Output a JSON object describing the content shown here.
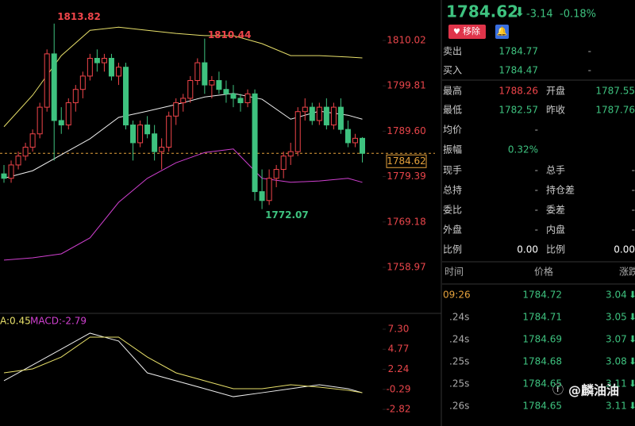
{
  "chart": {
    "type": "candlestick",
    "ylim": [
      1748.61,
      1819.12
    ],
    "yticks": [
      {
        "value": 1810.02,
        "label": "1810.02"
      },
      {
        "value": 1799.81,
        "label": "1799.81"
      },
      {
        "value": 1789.6,
        "label": "1789.60"
      },
      {
        "value": 1779.39,
        "label": "1779.39"
      },
      {
        "value": 1769.18,
        "label": "1769.18"
      },
      {
        "value": 1758.97,
        "label": "1758.97"
      }
    ],
    "last_price": 1784.62,
    "up_color": "#f0454a",
    "down_color": "#3ec27f",
    "candles": [
      [
        1780,
        1782,
        1778,
        1779
      ],
      [
        1779,
        1783,
        1778,
        1782
      ],
      [
        1782,
        1785,
        1781,
        1784
      ],
      [
        1784,
        1787,
        1783,
        1786
      ],
      [
        1786,
        1790,
        1785,
        1789
      ],
      [
        1789,
        1796,
        1788,
        1795
      ],
      [
        1795,
        1808,
        1794,
        1807
      ],
      [
        1807,
        1813.82,
        1783,
        1792
      ],
      [
        1792,
        1795,
        1789,
        1791
      ],
      [
        1791,
        1797,
        1790,
        1796
      ],
      [
        1796,
        1800,
        1794,
        1799
      ],
      [
        1799,
        1803,
        1797,
        1802
      ],
      [
        1802,
        1807,
        1801,
        1806
      ],
      [
        1806,
        1808,
        1803,
        1805
      ],
      [
        1805,
        1807,
        1803,
        1806
      ],
      [
        1806,
        1807,
        1801,
        1802
      ],
      [
        1802,
        1805,
        1800,
        1804
      ],
      [
        1804,
        1805,
        1790,
        1791
      ],
      [
        1791,
        1792,
        1783,
        1787
      ],
      [
        1787,
        1792,
        1786,
        1791
      ],
      [
        1791,
        1793,
        1788,
        1789
      ],
      [
        1789,
        1791,
        1783,
        1785
      ],
      [
        1785,
        1788,
        1781,
        1786
      ],
      [
        1786,
        1794,
        1785,
        1793
      ],
      [
        1793,
        1797,
        1791,
        1796
      ],
      [
        1796,
        1798,
        1794,
        1797
      ],
      [
        1797,
        1802,
        1796,
        1801
      ],
      [
        1801,
        1806,
        1800,
        1805
      ],
      [
        1805,
        1810.44,
        1798,
        1800
      ],
      [
        1800,
        1802,
        1797,
        1801
      ],
      [
        1801,
        1803,
        1798,
        1799
      ],
      [
        1799,
        1801,
        1796,
        1798
      ],
      [
        1798,
        1800,
        1795,
        1797
      ],
      [
        1797,
        1798,
        1794,
        1796
      ],
      [
        1796,
        1799,
        1795,
        1798
      ],
      [
        1798,
        1799,
        1774,
        1776
      ],
      [
        1776,
        1781,
        1772.07,
        1774
      ],
      [
        1774,
        1781,
        1773,
        1779
      ],
      [
        1779,
        1782,
        1777,
        1781
      ],
      [
        1781,
        1785,
        1779,
        1784
      ],
      [
        1784,
        1787,
        1782,
        1785
      ],
      [
        1785,
        1795,
        1784,
        1794
      ],
      [
        1794,
        1797,
        1792,
        1795
      ],
      [
        1795,
        1796,
        1791,
        1792
      ],
      [
        1792,
        1796,
        1791,
        1795
      ],
      [
        1795,
        1797,
        1790,
        1791
      ],
      [
        1791,
        1796,
        1790,
        1795
      ],
      [
        1795,
        1797,
        1789,
        1790
      ],
      [
        1790,
        1792,
        1786,
        1787
      ],
      [
        1787,
        1789,
        1786,
        1788
      ],
      [
        1788,
        1788.26,
        1782.57,
        1784.62
      ]
    ],
    "bands": {
      "x": [
        0,
        4,
        8,
        12,
        16,
        20,
        24,
        28,
        32,
        36,
        40,
        44,
        48,
        50
      ],
      "upper": [
        1790.6,
        1797.7,
        1806.6,
        1812.3,
        1813.0,
        1812.3,
        1811.6,
        1811.1,
        1811.1,
        1809.3,
        1806.6,
        1806.6,
        1806.3,
        1806.1
      ],
      "middle": [
        1779.0,
        1780.7,
        1784.3,
        1787.9,
        1792.7,
        1794.1,
        1795.6,
        1797.3,
        1798.1,
        1796.8,
        1792.3,
        1794.1,
        1793.2,
        1792.3
      ],
      "lower": [
        1760.6,
        1761.1,
        1762.0,
        1765.6,
        1773.6,
        1779.0,
        1782.5,
        1784.8,
        1785.6,
        1779.0,
        1778.1,
        1778.4,
        1779.0,
        1778.1
      ]
    }
  },
  "macd": {
    "legend": [
      "A:0.45",
      "MACD:-2.79"
    ],
    "ylim": [
      -4.92,
      9.0
    ],
    "yticks": [
      {
        "value": 7.3,
        "label": "7.30"
      },
      4.77,
      2.24,
      -0.29,
      -2.82
    ],
    "x": [
      0,
      4,
      8,
      12,
      16,
      20,
      24,
      28,
      32,
      36,
      40,
      44,
      48,
      50
    ],
    "dif": [
      0.79,
      2.79,
      4.79,
      6.8,
      5.8,
      1.79,
      0.79,
      -0.21,
      -1.22,
      -0.72,
      -0.21,
      0.29,
      -0.21,
      -0.72
    ],
    "dea": [
      1.79,
      2.29,
      3.79,
      6.3,
      6.3,
      3.79,
      1.79,
      0.79,
      -0.21,
      -0.21,
      0.29,
      -0.01,
      -0.42,
      -0.72
    ]
  },
  "quote": {
    "price": "1784.62",
    "change": "-3.14",
    "change_pct": "-0.18%",
    "remove": "移除",
    "book": [
      [
        "卖出",
        "1784.77",
        "-"
      ],
      [
        "买入",
        "1784.47",
        "-"
      ]
    ],
    "stats": [
      [
        "最高",
        "1788.26",
        "开盘",
        "1787.55"
      ],
      [
        "最低",
        "1782.57",
        "昨收",
        "1787.76"
      ],
      [
        "均价",
        "-"
      ],
      [
        "振幅",
        "0.32%"
      ],
      [
        "现手",
        "-",
        "总手",
        "-"
      ],
      [
        "总持",
        "-",
        "持仓差",
        "-"
      ],
      [
        "委比",
        "-",
        "委差",
        "-"
      ],
      [
        "外盘",
        "-",
        "内盘",
        "-"
      ],
      [
        "比例",
        "0.00",
        "比例",
        "0.00"
      ]
    ]
  },
  "trades": {
    "header": [
      "时间",
      "价格",
      "涨跌"
    ],
    "rows": [
      [
        "09:26",
        "1784.72",
        "3.04"
      ],
      [
        ".24s",
        "1784.71",
        "3.05"
      ],
      [
        ".24s",
        "1784.69",
        "3.07"
      ],
      [
        ".25s",
        "1784.68",
        "3.08"
      ],
      [
        ".25s",
        "1784.65",
        "3.11"
      ],
      [
        ".26s",
        "1784.65",
        "3.11"
      ]
    ]
  },
  "watermark": "@麟油油"
}
